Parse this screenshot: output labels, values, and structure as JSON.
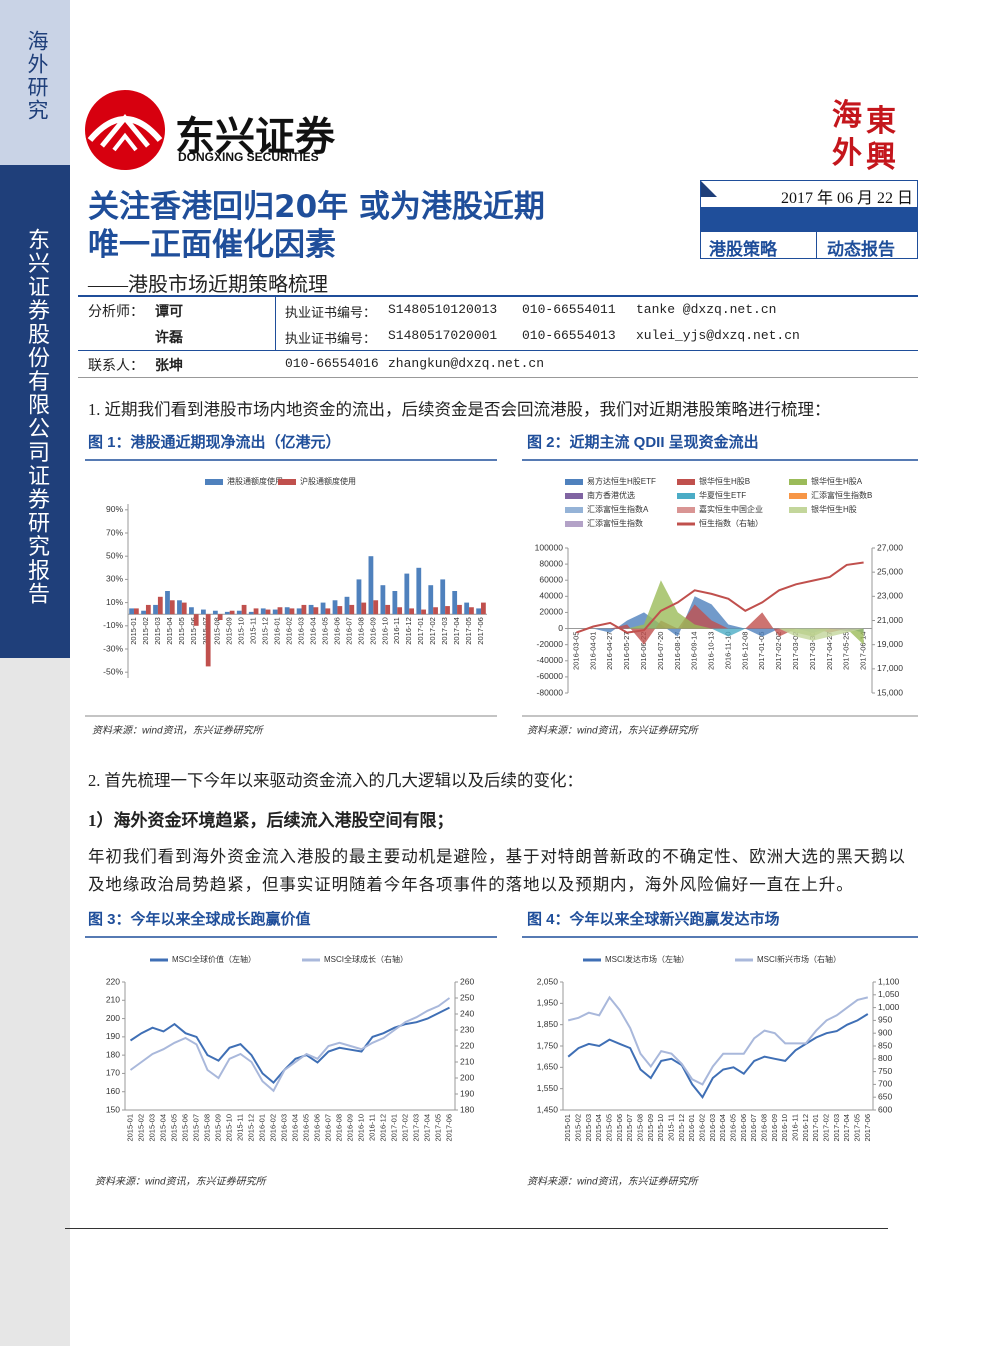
{
  "sidebar": {
    "top": "海外研究",
    "main": "东兴证券股份有限公司证券研究报告"
  },
  "header": {
    "logo_cn": "东兴证券",
    "logo_en": "DONGXING SECURITIES",
    "seal": [
      "海",
      "東",
      "外",
      "興"
    ],
    "title_lines": [
      "关注香港回归20年 或为港股近期",
      "唯一正面催化因素"
    ],
    "subtitle": "——港股市场近期策略梳理",
    "date": "2017 年 06 月 22 日",
    "tags": [
      "港股策略",
      "动态报告"
    ]
  },
  "analysts": {
    "rows": [
      {
        "role": "分析师：",
        "name": "谭可",
        "cert_label": "执业证书编号：",
        "cert": "S1480510120013",
        "phone": "010-66554011",
        "email": "tanke @dxzq.net.cn"
      },
      {
        "name": "许磊",
        "cert_label": "执业证书编号：",
        "cert": "S1480517020001",
        "phone": "010-66554013",
        "email": "xulei_yjs@dxzq.net.cn"
      },
      {
        "role": "联系人：",
        "name": "张坤",
        "phone": "010-66554016",
        "email": "zhangkun@dxzq.net.cn"
      }
    ]
  },
  "body": {
    "p1": "1.  近期我们看到港股市场内地资金的流出，后续资金是否会回流港股，我们对近期港股策略进行梳理：",
    "p2": "2.  首先梳理一下今年以来驱动资金流入的几大逻辑以及后续的变化：",
    "h1": "1）海外资金环境趋紧，后续流入港股空间有限；",
    "p3": "年初我们看到海外资金流入港股的最主要动机是避险，基于对特朗普新政的不确定性、欧洲大选的黑天鹅以及地缘政治局势趋紧，但事实证明随着今年各项事件的落地以及预期内，海外风险偏好一直在上升。"
  },
  "chart_data": [
    {
      "type": "bar",
      "title": "图 1：港股通近期现净流出（亿港元）",
      "source": "资料来源：wind资讯，东兴证券研究所",
      "categories": [
        "2015-01",
        "2015-02",
        "2015-03",
        "2015-04",
        "2015-05",
        "2015-06",
        "2015-07",
        "2015-08",
        "2015-09",
        "2015-10",
        "2015-11",
        "2015-12",
        "2016-01",
        "2016-02",
        "2016-03",
        "2016-04",
        "2016-05",
        "2016-06",
        "2016-07",
        "2016-08",
        "2016-09",
        "2016-10",
        "2016-11",
        "2016-12",
        "2017-01",
        "2017-02",
        "2017-03",
        "2017-04",
        "2017-05",
        "2017-06"
      ],
      "series": [
        {
          "name": "港股通额度使用",
          "color": "#4f81bd",
          "values": [
            5,
            3,
            8,
            20,
            12,
            6,
            4,
            3,
            2,
            3,
            2,
            5,
            4,
            6,
            5,
            8,
            10,
            12,
            15,
            30,
            50,
            25,
            20,
            35,
            40,
            25,
            30,
            20,
            10,
            5
          ]
        },
        {
          "name": "沪股通额度使用",
          "color": "#c0504d",
          "values": [
            5,
            8,
            15,
            12,
            10,
            -10,
            -45,
            -5,
            3,
            8,
            5,
            4,
            6,
            5,
            8,
            6,
            5,
            7,
            8,
            10,
            12,
            8,
            6,
            5,
            4,
            6,
            7,
            8,
            6,
            10
          ]
        }
      ],
      "ylim": [
        -55,
        95
      ],
      "yticks": [
        {
          "value": 90,
          "label": "90%"
        },
        {
          "value": 70,
          "label": "70%"
        },
        {
          "value": 50,
          "label": "50%"
        },
        {
          "value": 30,
          "label": "30%"
        },
        {
          "value": 10,
          "label": "10%"
        },
        {
          "value": -10,
          "label": "-10%"
        },
        {
          "value": -30,
          "label": "-30%"
        },
        {
          "value": -50,
          "label": "-50%"
        }
      ]
    },
    {
      "type": "area",
      "title": "图 2：近期主流 QDII 呈现资金流出",
      "source": "资料来源：wind资讯，东兴证券研究所",
      "categories": [
        "2016-03-05",
        "2016-04-01",
        "2016-04-27",
        "2016-05-27",
        "2016-06-22",
        "2016-07-20",
        "2016-08-17",
        "2016-09-14",
        "2016-10-13",
        "2016-11-10",
        "2016-12-08",
        "2017-01-05",
        "2017-02-02",
        "2017-03-02",
        "2017-03-30",
        "2017-04-27",
        "2017-05-25",
        "2017-06-14"
      ],
      "series": [
        {
          "name": "易方达恒生H股ETF",
          "color": "#4f81bd",
          "values": [
            0,
            0,
            -5000,
            10000,
            20000,
            5000,
            -10000,
            40000,
            30000,
            5000,
            0,
            -10000,
            0,
            0,
            -5000,
            0,
            0,
            -5000
          ]
        },
        {
          "name": "银华恒生H股B",
          "color": "#c0504d",
          "values": [
            0,
            0,
            0,
            5000,
            -20000,
            10000,
            0,
            30000,
            10000,
            0,
            0,
            20000,
            -10000,
            0,
            0,
            -5000,
            0,
            0
          ]
        },
        {
          "name": "银华恒生H股A",
          "color": "#9bbb59",
          "values": [
            0,
            0,
            0,
            0,
            5000,
            60000,
            20000,
            5000,
            0,
            0,
            0,
            0,
            0,
            -5000,
            -10000,
            0,
            0,
            -20000
          ]
        },
        {
          "name": "南方香港优选",
          "color": "#8064a2",
          "values": [
            0,
            0,
            0,
            0,
            0,
            0,
            0,
            0,
            0,
            0,
            0,
            0,
            0,
            0,
            0,
            0,
            -3000,
            0
          ]
        },
        {
          "name": "华夏恒生ETF",
          "color": "#4bacc6",
          "values": [
            0,
            0,
            0,
            0,
            0,
            0,
            0,
            0,
            0,
            -10000,
            0,
            0,
            0,
            0,
            0,
            0,
            0,
            0
          ]
        },
        {
          "name": "汇添富恒生指数B",
          "color": "#f79646",
          "values": [
            0,
            0,
            0,
            0,
            0,
            0,
            0,
            0,
            0,
            0,
            0,
            0,
            0,
            0,
            0,
            0,
            0,
            0
          ]
        },
        {
          "name": "汇添富恒生指数A",
          "color": "#95b3d7",
          "values": [
            0,
            0,
            0,
            0,
            0,
            0,
            0,
            0,
            0,
            0,
            0,
            0,
            0,
            0,
            0,
            0,
            0,
            0
          ]
        },
        {
          "name": "嘉实恒生中国企业",
          "color": "#d99594",
          "values": [
            0,
            0,
            0,
            0,
            0,
            0,
            0,
            0,
            0,
            0,
            0,
            0,
            0,
            0,
            0,
            0,
            0,
            0
          ]
        },
        {
          "name": "银华恒生H股",
          "color": "#c3d69b",
          "values": [
            0,
            0,
            0,
            0,
            0,
            0,
            0,
            0,
            0,
            0,
            0,
            0,
            0,
            -10000,
            -15000,
            -10000,
            -5000,
            0
          ]
        },
        {
          "name": "汇添富恒生指数",
          "color": "#b3a2c7",
          "values": [
            0,
            0,
            0,
            0,
            0,
            0,
            0,
            0,
            0,
            0,
            0,
            0,
            0,
            0,
            0,
            0,
            0,
            0
          ]
        },
        {
          "name": "恒生指数（右轴）",
          "color": "#c0504d",
          "axis": "y2",
          "values": [
            20000,
            20500,
            20800,
            20000,
            20200,
            21800,
            22500,
            23500,
            23200,
            22800,
            21800,
            22500,
            23500,
            24000,
            24300,
            24600,
            25600,
            25800
          ]
        }
      ],
      "ylim": [
        -80000,
        100000
      ],
      "yticks": [
        100000,
        80000,
        60000,
        40000,
        20000,
        0,
        -20000,
        -40000,
        -60000,
        -80000
      ],
      "y2lim": [
        15000,
        27000
      ],
      "y2ticks": [
        {
          "value": 27000,
          "label": "27,000"
        },
        {
          "value": 25000,
          "label": "25,000"
        },
        {
          "value": 23000,
          "label": "23,000"
        },
        {
          "value": 21000,
          "label": "21,000"
        },
        {
          "value": 19000,
          "label": "19,000"
        },
        {
          "value": 17000,
          "label": "17,000"
        },
        {
          "value": 15000,
          "label": "15,000"
        }
      ]
    },
    {
      "type": "line",
      "title": "图 3：今年以来全球成长跑赢价值",
      "source": "资料来源：wind资讯，东兴证券研究所",
      "categories": [
        "2015-01",
        "2015-02",
        "2015-03",
        "2015-04",
        "2015-05",
        "2015-06",
        "2015-07",
        "2015-08",
        "2015-09",
        "2015-10",
        "2015-11",
        "2015-12",
        "2016-01",
        "2016-02",
        "2016-03",
        "2016-04",
        "2016-05",
        "2016-06",
        "2016-07",
        "2016-08",
        "2016-09",
        "2016-10",
        "2016-11",
        "2016-12",
        "2017-01",
        "2017-02",
        "2017-03",
        "2017-04",
        "2017-05",
        "2017-06"
      ],
      "series": [
        {
          "name": "MSCI全球价值（左轴）",
          "color": "#3f6fb5",
          "values": [
            188,
            192,
            195,
            193,
            197,
            192,
            190,
            180,
            177,
            184,
            186,
            180,
            170,
            165,
            172,
            178,
            180,
            176,
            182,
            184,
            183,
            182,
            190,
            192,
            195,
            197,
            198,
            200,
            203,
            206
          ]
        },
        {
          "name": "MSCI全球成长（右轴）",
          "color": "#a9b8db",
          "axis": "y2",
          "values": [
            205,
            210,
            215,
            218,
            222,
            225,
            221,
            205,
            200,
            212,
            215,
            210,
            198,
            192,
            205,
            210,
            215,
            212,
            220,
            222,
            220,
            218,
            222,
            225,
            230,
            235,
            238,
            242,
            245,
            250
          ]
        }
      ],
      "ylim": [
        150,
        220
      ],
      "yticks": [
        220,
        210,
        200,
        190,
        180,
        170,
        160,
        150
      ],
      "y2lim": [
        180,
        260
      ],
      "y2ticks": [
        260,
        250,
        240,
        230,
        220,
        210,
        200,
        190,
        180
      ]
    },
    {
      "type": "line",
      "title": "图 4：今年以来全球新兴跑赢发达市场",
      "source": "资料来源：wind资讯，东兴证券研究所",
      "categories": [
        "2015-01",
        "2015-02",
        "2015-03",
        "2015-04",
        "2015-05",
        "2015-06",
        "2015-07",
        "2015-08",
        "2015-09",
        "2015-10",
        "2015-11",
        "2015-12",
        "2016-01",
        "2016-02",
        "2016-03",
        "2016-04",
        "2016-05",
        "2016-06",
        "2016-07",
        "2016-08",
        "2016-09",
        "2016-10",
        "2016-11",
        "2016-12",
        "2017-01",
        "2017-02",
        "2017-03",
        "2017-04",
        "2017-05",
        "2017-06"
      ],
      "series": [
        {
          "name": "MSCI发达市场（左轴）",
          "color": "#3f6fb5",
          "values": [
            1700,
            1740,
            1760,
            1750,
            1780,
            1760,
            1740,
            1640,
            1600,
            1680,
            1690,
            1660,
            1570,
            1510,
            1600,
            1640,
            1650,
            1620,
            1680,
            1700,
            1690,
            1680,
            1730,
            1760,
            1790,
            1810,
            1820,
            1850,
            1870,
            1900
          ]
        },
        {
          "name": "MSCI新兴市场（右轴）",
          "color": "#a9b8db",
          "axis": "y2",
          "values": [
            950,
            960,
            980,
            970,
            1040,
            990,
            920,
            820,
            770,
            830,
            820,
            780,
            720,
            700,
            770,
            820,
            820,
            820,
            880,
            910,
            900,
            860,
            860,
            860,
            910,
            950,
            970,
            1000,
            1030,
            1040
          ]
        }
      ],
      "ylim": [
        1450,
        2050
      ],
      "yticks": [
        {
          "value": 2050,
          "label": "2,050"
        },
        {
          "value": 1950,
          "label": "1,950"
        },
        {
          "value": 1850,
          "label": "1,850"
        },
        {
          "value": 1750,
          "label": "1,750"
        },
        {
          "value": 1650,
          "label": "1,650"
        },
        {
          "value": 1550,
          "label": "1,550"
        },
        {
          "value": 1450,
          "label": "1,450"
        }
      ],
      "y2lim": [
        600,
        1100
      ],
      "y2ticks": [
        {
          "value": 1100,
          "label": "1,100"
        },
        {
          "value": 1050,
          "label": "1,050"
        },
        {
          "value": 1000,
          "label": "1,000"
        },
        950,
        900,
        850,
        800,
        750,
        700,
        650,
        600
      ]
    }
  ]
}
